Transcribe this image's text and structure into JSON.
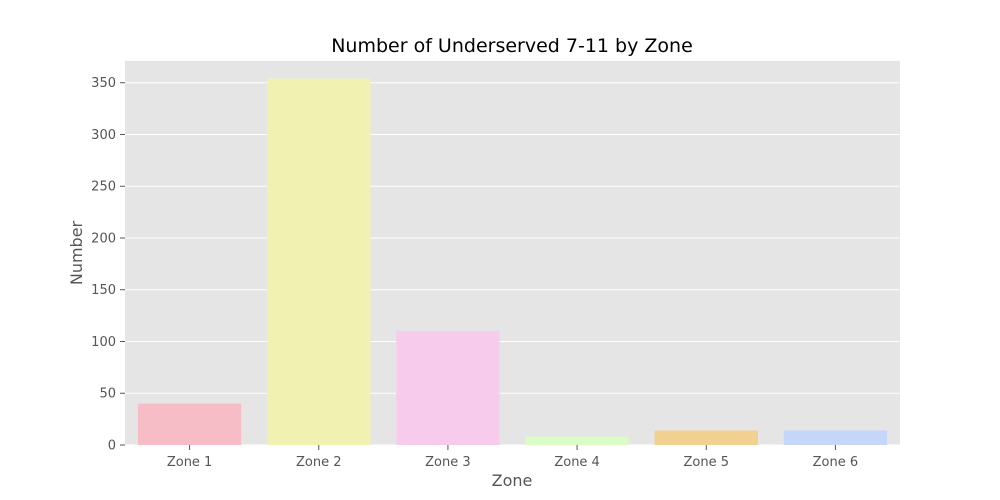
{
  "chart_data": {
    "type": "bar",
    "title": "Number of Underserved 7-11 by Zone",
    "xlabel": "Zone",
    "ylabel": "Number",
    "categories": [
      "Zone 1",
      "Zone 2",
      "Zone 3",
      "Zone 4",
      "Zone 5",
      "Zone 6"
    ],
    "values": [
      40,
      354,
      110,
      8,
      14,
      14
    ],
    "ylim": [
      0,
      371
    ],
    "yticks": [
      0,
      50,
      100,
      150,
      200,
      250,
      300,
      350
    ],
    "grid": true,
    "legend": "none",
    "colors": [
      "#f7bdc7",
      "#f1f2b1",
      "#f6cbeb",
      "#dcfcc6",
      "#f2d08f",
      "#c5d6fa"
    ],
    "background": "#e5e5e5",
    "grid_color": "#ffffff"
  }
}
